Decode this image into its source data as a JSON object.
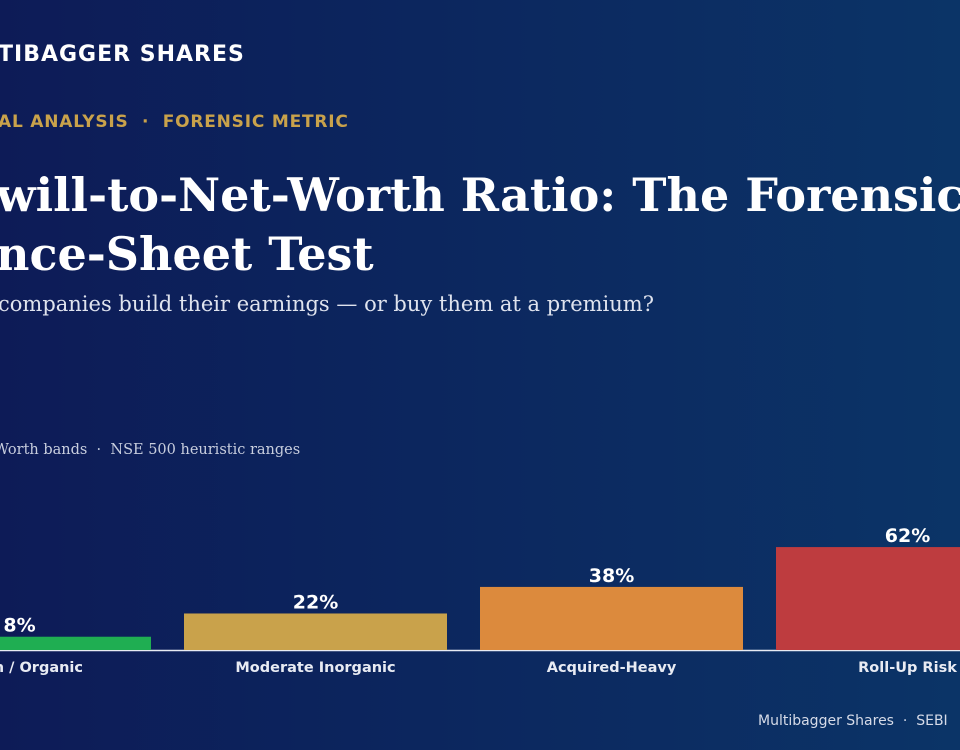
{
  "brand": "TIBAGGER SHARES",
  "kicker": "AL ANALYSIS  ·  FORENSIC METRIC",
  "title_lines": [
    "will-to-Net-Worth Ratio: The Forensic",
    "nce-Sheet Test"
  ],
  "subtitle": "companies build their earnings — or buy them at a premium?",
  "footer": "Multibagger Shares  ·  SEBI",
  "chart_data": {
    "type": "bar",
    "subtitle": "Worth bands  ·  NSE 500 heuristic ranges",
    "categories": [
      "n / Organic",
      "Moderate Inorganic",
      "Acquired-Heavy",
      "Roll-Up Risk"
    ],
    "values": [
      8,
      22,
      38,
      62
    ],
    "value_labels": [
      "8%",
      "22%",
      "38%",
      "62%"
    ],
    "colors": [
      "#1fae52",
      "#c9a24b",
      "#dc8a3d",
      "#be3c3f"
    ]
  }
}
